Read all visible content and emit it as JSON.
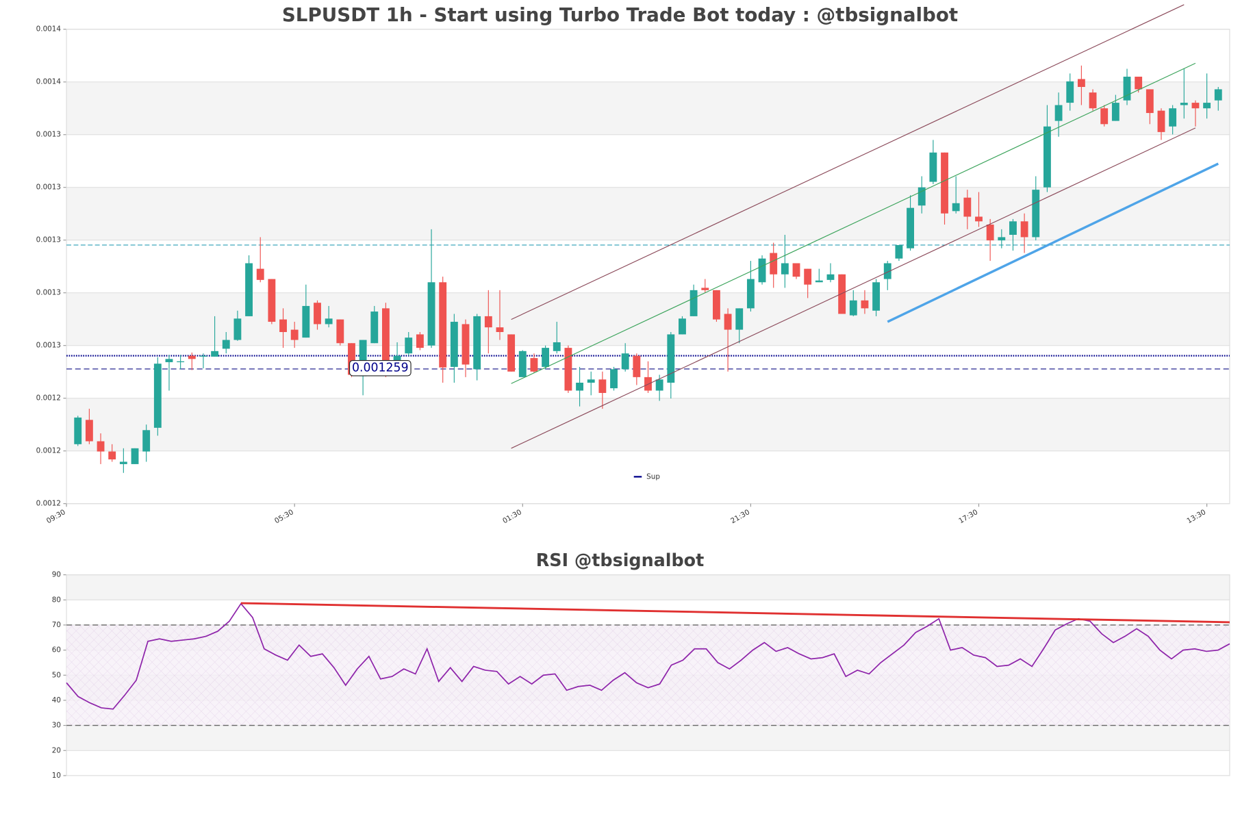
{
  "chart_data": [
    {
      "type": "candlestick",
      "title": "SLPUSDT 1h - Start using Turbo Trade Bot today : @tbsignalbot",
      "x": [
        1,
        2,
        3,
        4,
        5,
        6,
        7,
        8,
        9,
        10,
        11,
        12,
        13,
        14,
        15,
        16,
        17,
        18,
        19,
        20,
        21,
        22,
        23,
        24,
        25,
        26,
        27,
        28,
        29,
        30,
        31,
        32,
        33,
        34,
        35,
        36,
        37,
        38,
        39,
        40,
        41,
        42,
        43,
        44,
        45,
        46,
        47,
        48,
        49,
        50,
        51,
        52,
        53,
        54,
        55,
        56,
        57,
        58,
        59,
        60,
        61,
        62,
        63,
        64,
        65,
        66,
        67,
        68,
        69,
        70,
        71,
        72,
        73,
        74,
        75,
        76,
        77,
        78,
        79,
        80,
        81,
        82,
        83,
        84,
        85,
        86,
        87,
        88,
        89,
        90,
        91,
        92,
        93,
        94,
        95,
        96,
        97,
        98,
        99,
        100,
        101
      ],
      "open": [
        0.0012333,
        0.0012416,
        0.0012343,
        0.0012308,
        0.0012265,
        0.0012265,
        0.0012308,
        0.0012389,
        0.0012613,
        0.0012613,
        0.0012635,
        0.0012632,
        0.0012632,
        0.0012659,
        0.0012689,
        0.001277,
        0.0012932,
        0.0012897,
        0.0012759,
        0.0012724,
        0.0012697,
        0.0012816,
        0.0012743,
        0.0012759,
        0.0012678,
        0.0012565,
        0.0012678,
        0.0012797,
        0.0012616,
        0.0012643,
        0.0012708,
        0.001267,
        0.0012886,
        0.0012597,
        0.0012743,
        0.0012589,
        0.001277,
        0.0012732,
        0.0012708,
        0.0012562,
        0.0012627,
        0.0012597,
        0.0012651,
        0.0012662,
        0.0012516,
        0.0012543,
        0.0012554,
        0.0012524,
        0.0012589,
        0.0012635,
        0.0012562,
        0.0012516,
        0.0012543,
        0.0012708,
        0.001277,
        0.0012867,
        0.0012859,
        0.0012778,
        0.0012724,
        0.0012797,
        0.0012886,
        0.0012986,
        0.0012913,
        0.0012951,
        0.0012932,
        0.0012886,
        0.0012894,
        0.0012913,
        0.0012773,
        0.0012824,
        0.0012789,
        0.0012897,
        0.0012967,
        0.0013002,
        0.0013148,
        0.0013229,
        0.0013329,
        0.0013129,
        0.0013175,
        0.001311,
        0.0013083,
        0.0013029,
        0.0013048,
        0.0013094,
        0.001304,
        0.001321,
        0.0013437,
        0.0013499,
        0.001358,
        0.0013534,
        0.001348,
        0.0013437,
        0.0013507,
        0.0013588,
        0.0013545,
        0.0013472,
        0.0013418,
        0.0013491,
        0.0013499,
        0.001348,
        0.0013507
      ],
      "high": [
        0.001243,
        0.0012454,
        0.001237,
        0.0012333,
        0.0012319,
        0.0012319,
        0.00124,
        0.001263,
        0.0012638,
        0.0012638,
        0.0012646,
        0.0012643,
        0.001277,
        0.0012716,
        0.0012789,
        0.0012978,
        0.001304,
        0.0012897,
        0.0012797,
        0.0012751,
        0.0012878,
        0.0012824,
        0.0012805,
        0.0012759,
        0.0012678,
        0.0012689,
        0.0012805,
        0.0012816,
        0.0012681,
        0.0012716,
        0.0012716,
        0.0013067,
        0.0012905,
        0.0012778,
        0.0012759,
        0.0012778,
        0.0012859,
        0.0012859,
        0.0012708,
        0.0012654,
        0.0012643,
        0.001267,
        0.0012751,
        0.001267,
        0.0012597,
        0.0012581,
        0.0012581,
        0.0012597,
        0.0012678,
        0.0012643,
        0.0012616,
        0.001257,
        0.0012716,
        0.001277,
        0.0012878,
        0.0012897,
        0.0012859,
        0.0012797,
        0.0012797,
        0.0012959,
        0.0012978,
        0.0013021,
        0.0013048,
        0.0012951,
        0.0012932,
        0.0012932,
        0.0012951,
        0.0012913,
        0.0012859,
        0.0012859,
        0.0012897,
        0.0012959,
        0.0013013,
        0.0013183,
        0.0013248,
        0.0013372,
        0.0013329,
        0.0013248,
        0.0013202,
        0.0013194,
        0.0013102,
        0.0013067,
        0.0013102,
        0.0013121,
        0.0013248,
        0.0013491,
        0.0013534,
        0.0013599,
        0.0013626,
        0.0013545,
        0.0013491,
        0.0013526,
        0.0013615,
        0.0013588,
        0.0013545,
        0.001348,
        0.0013491,
        0.0013615,
        0.0013507,
        0.0013599,
        0.0013553
      ],
      "low": [
        0.0012327,
        0.0012333,
        0.0012265,
        0.0012273,
        0.0012235,
        0.0012265,
        0.0012273,
        0.0012362,
        0.0012516,
        0.0012589,
        0.0012586,
        0.0012592,
        0.0012632,
        0.0012643,
        0.0012686,
        0.001277,
        0.0012886,
        0.0012743,
        0.0012662,
        0.0012662,
        0.0012697,
        0.0012724,
        0.0012732,
        0.001267,
        0.0012562,
        0.00125,
        0.0012678,
        0.0012562,
        0.0012616,
        0.0012635,
        0.0012654,
        0.0012662,
        0.0012543,
        0.0012543,
        0.0012562,
        0.0012551,
        0.0012643,
        0.0012689,
        0.0012581,
        0.0012562,
        0.0012576,
        0.0012589,
        0.0012643,
        0.0012508,
        0.0012462,
        0.00125,
        0.0012454,
        0.0012516,
        0.0012581,
        0.0012535,
        0.0012508,
        0.0012481,
        0.0012489,
        0.0012708,
        0.001277,
        0.0012851,
        0.0012751,
        0.0012581,
        0.0012678,
        0.0012786,
        0.0012878,
        0.0012867,
        0.0012867,
        0.0012897,
        0.0012832,
        0.0012886,
        0.0012886,
        0.0012778,
        0.001277,
        0.0012778,
        0.001277,
        0.0012859,
        0.0012959,
        0.0012994,
        0.0013121,
        0.0013221,
        0.0013083,
        0.0013121,
        0.0013067,
        0.0013075,
        0.0012959,
        0.0013002,
        0.0012994,
        0.0012986,
        0.0013029,
        0.0013194,
        0.0013383,
        0.0013472,
        0.0013491,
        0.0013472,
        0.0013418,
        0.0013437,
        0.0013491,
        0.0013534,
        0.0013426,
        0.0013372,
        0.0013391,
        0.0013445,
        0.0013418,
        0.0013445,
        0.0013472
      ],
      "close": [
        0.0012424,
        0.0012343,
        0.0012308,
        0.0012281,
        0.0012273,
        0.0012319,
        0.0012381,
        0.0012608,
        0.0012624,
        0.0012616,
        0.0012624,
        0.0012635,
        0.0012651,
        0.0012689,
        0.0012762,
        0.0012951,
        0.0012894,
        0.0012751,
        0.0012716,
        0.0012689,
        0.0012805,
        0.0012743,
        0.0012762,
        0.0012678,
        0.001257,
        0.0012689,
        0.0012786,
        0.0012616,
        0.0012635,
        0.0012697,
        0.0012662,
        0.0012886,
        0.0012595,
        0.0012751,
        0.0012605,
        0.001277,
        0.0012732,
        0.0012716,
        0.0012581,
        0.0012651,
        0.0012581,
        0.0012662,
        0.0012681,
        0.0012516,
        0.0012543,
        0.0012554,
        0.0012508,
        0.0012589,
        0.0012643,
        0.0012562,
        0.0012516,
        0.0012554,
        0.0012708,
        0.0012762,
        0.0012859,
        0.0012859,
        0.0012759,
        0.0012724,
        0.0012797,
        0.0012897,
        0.0012967,
        0.0012913,
        0.0012951,
        0.0012905,
        0.0012878,
        0.0012892,
        0.0012913,
        0.0012778,
        0.0012824,
        0.0012797,
        0.0012886,
        0.0012951,
        0.0013013,
        0.001314,
        0.001321,
        0.0013329,
        0.0013121,
        0.0013156,
        0.001311,
        0.0013094,
        0.0013029,
        0.001304,
        0.0013094,
        0.001304,
        0.0013202,
        0.0013418,
        0.0013491,
        0.0013572,
        0.0013553,
        0.001348,
        0.0013426,
        0.0013499,
        0.0013588,
        0.0013545,
        0.0013464,
        0.0013399,
        0.001348,
        0.0013499,
        0.001348,
        0.0013499,
        0.0013545
      ],
      "up_color": "#26a69a",
      "down_color": "#ef5350",
      "xlim": [
        0,
        102
      ],
      "xticks": [
        {
          "value": 0,
          "label": "09:30"
        },
        {
          "value": 20,
          "label": "05:30"
        },
        {
          "value": 40,
          "label": "01:30"
        },
        {
          "value": 60,
          "label": "21:30"
        },
        {
          "value": 80,
          "label": "17:30"
        },
        {
          "value": 100,
          "label": "13:30"
        }
      ],
      "ylim": [
        0.001213,
        0.001375
      ],
      "yticks": [
        {
          "value": 0.001213,
          "label": "0.0012"
        },
        {
          "value": 0.001231,
          "label": "0.0012"
        },
        {
          "value": 0.001249,
          "label": "0.0012"
        },
        {
          "value": 0.001267,
          "label": "0.0013"
        },
        {
          "value": 0.001285,
          "label": "0.0013"
        },
        {
          "value": 0.001303,
          "label": "0.0013"
        },
        {
          "value": 0.001321,
          "label": "0.0013"
        },
        {
          "value": 0.001339,
          "label": "0.0013"
        },
        {
          "value": 0.001357,
          "label": "0.0014"
        },
        {
          "value": 0.001375,
          "label": "0.0014"
        }
      ],
      "grid": true,
      "hlines": [
        {
          "name": "Sup",
          "value": 0.0012635,
          "color": "#00008b",
          "style": "dotted"
        },
        {
          "value": 0.0013013,
          "color": "#2a9db5",
          "style": "dashed"
        }
      ],
      "last_price": 0.001259,
      "last_price_color": "#3a3a9a",
      "trendlines": [
        {
          "x": [
            39,
            98
          ],
          "y": [
            0.0012759,
            0.0013834
          ],
          "color": "#8b4a5a",
          "width": 1
        },
        {
          "x": [
            39,
            99
          ],
          "y": [
            0.001254,
            0.0013634
          ],
          "color": "#3aa35a",
          "width": 1
        },
        {
          "x": [
            39,
            99
          ],
          "y": [
            0.0012319,
            0.0013413
          ],
          "color": "#8b4a5a",
          "width": 1
        },
        {
          "x": [
            72,
            101
          ],
          "y": [
            0.0012751,
            0.0013291
          ],
          "color": "#4ea4e8",
          "width": 3
        }
      ],
      "legend": "lower center"
    },
    {
      "type": "line",
      "title": "RSI @tbsignalbot",
      "values": [
        47,
        41.5,
        39,
        37,
        36.5,
        42,
        48,
        63.5,
        64.5,
        63.5,
        64,
        64.5,
        65.5,
        67.5,
        71.5,
        78.5,
        73,
        60.5,
        58,
        56,
        62,
        57.5,
        58.5,
        53,
        46,
        52.5,
        57.5,
        48.5,
        49.5,
        52.5,
        50.5,
        60.5,
        47.5,
        53,
        47.5,
        53.5,
        52,
        51.5,
        46.5,
        49.5,
        46.5,
        50,
        50.5,
        44,
        45.5,
        46,
        44,
        48,
        51,
        47,
        45,
        46.5,
        54,
        56,
        60.5,
        60.5,
        55,
        52.5,
        56,
        60,
        63,
        59.5,
        61,
        58.5,
        56.5,
        57,
        58.5,
        49.5,
        52,
        50.5,
        55,
        58.5,
        62,
        67,
        69.5,
        72.5,
        60,
        61,
        58,
        57,
        53.5,
        54,
        56.5,
        53.5,
        60.5,
        68,
        70.5,
        72.5,
        71.5,
        66.5,
        63,
        65.5,
        68.5,
        65.5,
        60,
        56.5,
        60,
        60.5,
        59.5,
        60,
        62.5
      ],
      "color": "#8e24aa",
      "ylim": [
        10,
        90
      ],
      "yticks": [
        10,
        20,
        30,
        40,
        50,
        60,
        70,
        80,
        90
      ],
      "grid": true,
      "levels": [
        70,
        30
      ],
      "trendline": {
        "x": [
          15,
          100
        ],
        "y": [
          78.7,
          71.1
        ],
        "color": "#e03030",
        "width": 2.5
      }
    }
  ]
}
